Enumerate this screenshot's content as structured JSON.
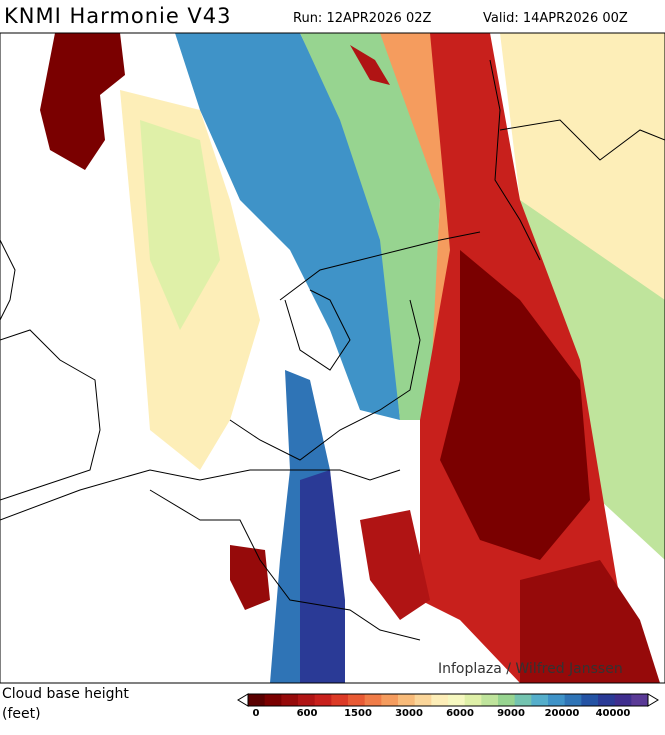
{
  "header": {
    "title": "KNMI Harmonie V43",
    "run": "Run: 12APR2026 02Z",
    "valid": "Valid: 14APR2026 00Z"
  },
  "map": {
    "credit": "Infoplaza / Wilfred Janssen"
  },
  "legend": {
    "title_line1": "Cloud base height",
    "title_line2": "(feet)",
    "ticks": [
      0,
      600,
      1500,
      3000,
      6000,
      9000,
      20000,
      40000
    ],
    "colors": [
      "#5a0000",
      "#7a0000",
      "#960a0a",
      "#b01414",
      "#c8201c",
      "#dc3a26",
      "#e85a34",
      "#f07c48",
      "#f59c5e",
      "#f8bb7a",
      "#fbd69a",
      "#fdeeb8",
      "#f6f8c0",
      "#dff0a8",
      "#bfe49c",
      "#97d490",
      "#74c4b0",
      "#55aecb",
      "#3f93c8",
      "#2f74b6",
      "#2453a4",
      "#2a3a96",
      "#3f2e8e",
      "#5a3a96"
    ]
  }
}
